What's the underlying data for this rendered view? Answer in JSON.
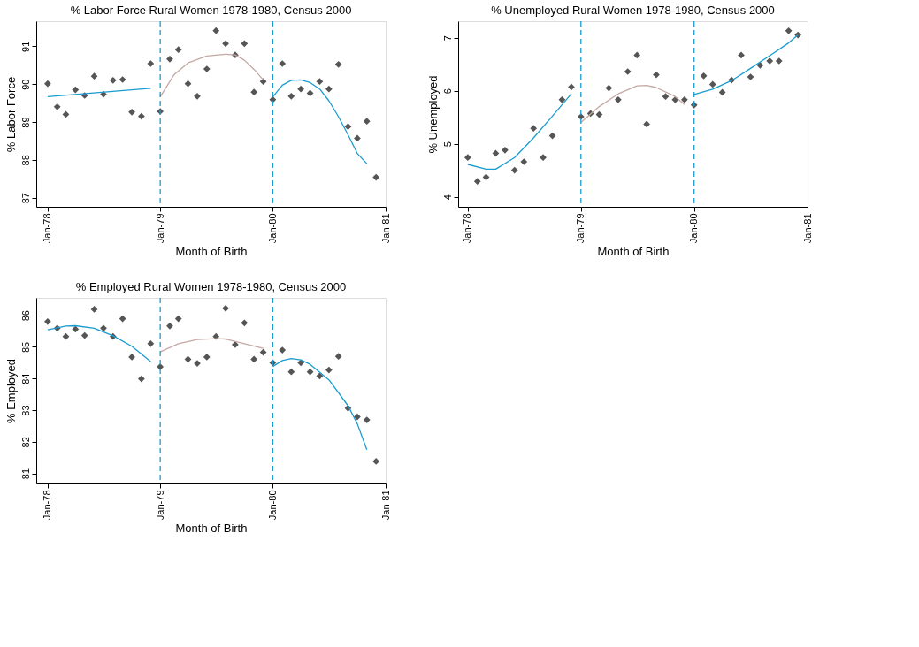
{
  "chart_data": [
    {
      "type": "scatter",
      "title": "% Labor Force Rural Women 1978-1980, Census 2000",
      "xlabel": "Month of Birth",
      "ylabel": "% Labor Force",
      "marker": "diamond",
      "grid": false,
      "xlim": [
        "1977-11-25",
        "1981-01"
      ],
      "ylim": [
        86.76,
        91.66
      ],
      "xticks": [
        {
          "value": "1978-01",
          "label": "Jan-78"
        },
        {
          "value": "1979-01",
          "label": "Jan-79"
        },
        {
          "value": "1980-01",
          "label": "Jan-80"
        },
        {
          "value": "1981-01",
          "label": "Jan-81"
        }
      ],
      "yticks": [
        87,
        88,
        89,
        90,
        91
      ],
      "x": [
        "1978-01",
        "1978-02",
        "1978-03",
        "1978-04",
        "1978-05",
        "1978-06",
        "1978-07",
        "1978-08",
        "1978-09",
        "1978-10",
        "1978-11",
        "1978-12",
        "1979-01",
        "1979-02",
        "1979-03",
        "1979-04",
        "1979-05",
        "1979-06",
        "1979-07",
        "1979-08",
        "1979-09",
        "1979-10",
        "1979-11",
        "1979-12",
        "1980-01",
        "1980-02",
        "1980-03",
        "1980-04",
        "1980-05",
        "1980-06",
        "1980-07",
        "1980-08",
        "1980-09",
        "1980-10",
        "1980-11",
        "1980-12"
      ],
      "series": [
        {
          "color": "#555555",
          "values": [
            90.01,
            89.4,
            89.2,
            89.85,
            89.7,
            90.21,
            89.73,
            90.1,
            90.12,
            89.26,
            89.15,
            90.54,
            89.28,
            90.66,
            90.91,
            90.01,
            89.68,
            90.4,
            91.41,
            91.07,
            90.77,
            91.07,
            89.79,
            90.07,
            89.59,
            90.54,
            89.68,
            89.87,
            89.76,
            90.07,
            89.87,
            90.52,
            88.88,
            88.57,
            89.02,
            87.54
          ]
        },
        {
          "type": "line",
          "marker": "none",
          "line_style": "solid",
          "color": "#1a9ccf",
          "x": [
            "1978-01",
            "1978-12"
          ],
          "values": [
            89.67,
            89.89
          ]
        },
        {
          "type": "line",
          "marker": "none",
          "line_style": "solid",
          "color": "#c4a9a4",
          "x": [
            "1979-01",
            "1979-02-15",
            "1979-04",
            "1979-06",
            "1979-08",
            "1979-09",
            "1979-10",
            "1979-11",
            "1979-12"
          ],
          "values": [
            89.66,
            90.25,
            90.56,
            90.74,
            90.79,
            90.77,
            90.63,
            90.39,
            90.11
          ]
        },
        {
          "type": "line",
          "marker": "none",
          "line_style": "solid",
          "color": "#1a9ccf",
          "x": [
            "1980-01",
            "1980-02",
            "1980-03",
            "1980-04",
            "1980-05",
            "1980-06",
            "1980-07",
            "1980-08",
            "1980-09",
            "1980-10",
            "1980-11"
          ],
          "values": [
            89.66,
            89.97,
            90.1,
            90.11,
            90.04,
            89.87,
            89.56,
            89.14,
            88.66,
            88.17,
            87.9
          ]
        }
      ],
      "ref_lines": [
        {
          "axis": "x",
          "value": "1979-01",
          "color": "#1a9ccf",
          "line_style": "dashed"
        },
        {
          "axis": "x",
          "value": "1980-01",
          "color": "#1a9ccf",
          "line_style": "dashed"
        }
      ]
    },
    {
      "type": "scatter",
      "title": "% Unemployed Rural Women 1978-1980, Census 2000",
      "xlabel": "Month of Birth",
      "ylabel": "% Unemployed",
      "marker": "diamond",
      "grid": false,
      "xlim": [
        "1977-12-01",
        "1981-01"
      ],
      "ylim": [
        3.81,
        7.31
      ],
      "xticks": [
        {
          "value": "1978-01",
          "label": "Jan-78"
        },
        {
          "value": "1979-01",
          "label": "Jan-79"
        },
        {
          "value": "1980-01",
          "label": "Jan-80"
        },
        {
          "value": "1981-01",
          "label": "Jan-81"
        }
      ],
      "yticks": [
        4,
        5,
        6,
        7
      ],
      "x": [
        "1978-01",
        "1978-02",
        "1978-03",
        "1978-04",
        "1978-05",
        "1978-06",
        "1978-07",
        "1978-08",
        "1978-09",
        "1978-10",
        "1978-11",
        "1978-12",
        "1979-01",
        "1979-02",
        "1979-03",
        "1979-04",
        "1979-05",
        "1979-06",
        "1979-07",
        "1979-08",
        "1979-09",
        "1979-10",
        "1979-11",
        "1979-12",
        "1980-01",
        "1980-02",
        "1980-03",
        "1980-04",
        "1980-05",
        "1980-06",
        "1980-07",
        "1980-08",
        "1980-09",
        "1980-10",
        "1980-11",
        "1980-12"
      ],
      "series": [
        {
          "color": "#555555",
          "values": [
            4.74,
            4.29,
            4.37,
            4.82,
            4.88,
            4.5,
            4.66,
            5.29,
            4.74,
            5.15,
            5.83,
            6.07,
            5.51,
            5.57,
            5.55,
            6.05,
            5.83,
            6.36,
            6.67,
            5.37,
            6.3,
            5.89,
            5.83,
            5.83,
            5.73,
            6.28,
            6.12,
            5.97,
            6.2,
            6.67,
            6.26,
            6.48,
            6.56,
            6.56,
            7.13,
            7.05
          ]
        },
        {
          "type": "line",
          "marker": "none",
          "line_style": "solid",
          "color": "#1a9ccf",
          "x": [
            "1978-01",
            "1978-03",
            "1978-04",
            "1978-06",
            "1978-08",
            "1978-10",
            "1978-12"
          ],
          "values": [
            4.61,
            4.52,
            4.52,
            4.74,
            5.11,
            5.52,
            5.94
          ]
        },
        {
          "type": "line",
          "marker": "none",
          "line_style": "solid",
          "color": "#c4a9a4",
          "x": [
            "1979-01",
            "1979-03",
            "1979-05",
            "1979-07",
            "1979-08",
            "1979-09",
            "1979-11",
            "1979-12"
          ],
          "values": [
            5.4,
            5.7,
            5.94,
            6.09,
            6.1,
            6.06,
            5.89,
            5.74
          ]
        },
        {
          "type": "line",
          "marker": "none",
          "line_style": "solid",
          "color": "#1a9ccf",
          "x": [
            "1980-01",
            "1980-03",
            "1980-05",
            "1980-07",
            "1980-09",
            "1980-11",
            "1980-12"
          ],
          "values": [
            5.93,
            6.03,
            6.19,
            6.42,
            6.66,
            6.9,
            7.05
          ]
        }
      ],
      "ref_lines": [
        {
          "axis": "x",
          "value": "1979-01",
          "color": "#1a9ccf",
          "line_style": "dashed"
        },
        {
          "axis": "x",
          "value": "1980-01",
          "color": "#1a9ccf",
          "line_style": "dashed"
        }
      ]
    },
    {
      "type": "scatter",
      "title": "% Employed Rural Women 1978-1980, Census 2000",
      "xlabel": "Month of Birth",
      "ylabel": "% Employed",
      "marker": "diamond",
      "grid": false,
      "xlim": [
        "1977-11-25",
        "1981-01"
      ],
      "ylim": [
        80.68,
        86.55
      ],
      "xticks": [
        {
          "value": "1978-01",
          "label": "Jan-78"
        },
        {
          "value": "1979-01",
          "label": "Jan-79"
        },
        {
          "value": "1980-01",
          "label": "Jan-80"
        },
        {
          "value": "1981-01",
          "label": "Jan-81"
        }
      ],
      "yticks": [
        81,
        82,
        83,
        84,
        85,
        86
      ],
      "x": [
        "1978-01",
        "1978-02",
        "1978-03",
        "1978-04",
        "1978-05",
        "1978-06",
        "1978-07",
        "1978-08",
        "1978-09",
        "1978-10",
        "1978-11",
        "1978-12",
        "1979-01",
        "1979-02",
        "1979-03",
        "1979-04",
        "1979-05",
        "1979-06",
        "1979-07",
        "1979-08",
        "1979-09",
        "1979-10",
        "1979-11",
        "1979-12",
        "1980-01",
        "1980-02",
        "1980-03",
        "1980-04",
        "1980-05",
        "1980-06",
        "1980-07",
        "1980-08",
        "1980-09",
        "1980-10",
        "1980-11",
        "1980-12"
      ],
      "series": [
        {
          "color": "#555555",
          "values": [
            85.8,
            85.59,
            85.33,
            85.56,
            85.36,
            86.19,
            85.59,
            85.33,
            85.89,
            84.68,
            83.99,
            85.1,
            84.37,
            85.66,
            85.89,
            84.61,
            84.48,
            84.68,
            85.33,
            86.22,
            85.07,
            85.76,
            84.61,
            84.83,
            84.5,
            84.9,
            84.21,
            84.5,
            84.21,
            84.08,
            84.27,
            84.7,
            83.06,
            82.79,
            82.69,
            81.38
          ]
        },
        {
          "type": "line",
          "marker": "none",
          "line_style": "solid",
          "color": "#1a9ccf",
          "x": [
            "1978-01",
            "1978-03",
            "1978-04",
            "1978-06",
            "1978-08",
            "1978-10",
            "1978-12"
          ],
          "values": [
            85.54,
            85.66,
            85.67,
            85.59,
            85.35,
            85.02,
            84.54
          ]
        },
        {
          "type": "line",
          "marker": "none",
          "line_style": "solid",
          "color": "#c4a9a4",
          "x": [
            "1979-01",
            "1979-03",
            "1979-05",
            "1979-07",
            "1979-08",
            "1979-10",
            "1979-12"
          ],
          "values": [
            84.84,
            85.1,
            85.23,
            85.26,
            85.25,
            85.1,
            84.95
          ]
        },
        {
          "type": "line",
          "marker": "none",
          "line_style": "solid",
          "color": "#1a9ccf",
          "x": [
            "1980-01",
            "1980-02",
            "1980-03",
            "1980-04",
            "1980-05",
            "1980-07",
            "1980-09",
            "1980-10",
            "1980-11"
          ],
          "values": [
            84.38,
            84.57,
            84.63,
            84.59,
            84.45,
            83.96,
            83.14,
            82.57,
            81.75
          ]
        }
      ],
      "ref_lines": [
        {
          "axis": "x",
          "value": "1979-01",
          "color": "#1a9ccf",
          "line_style": "dashed"
        },
        {
          "axis": "x",
          "value": "1980-01",
          "color": "#1a9ccf",
          "line_style": "dashed"
        }
      ]
    }
  ]
}
